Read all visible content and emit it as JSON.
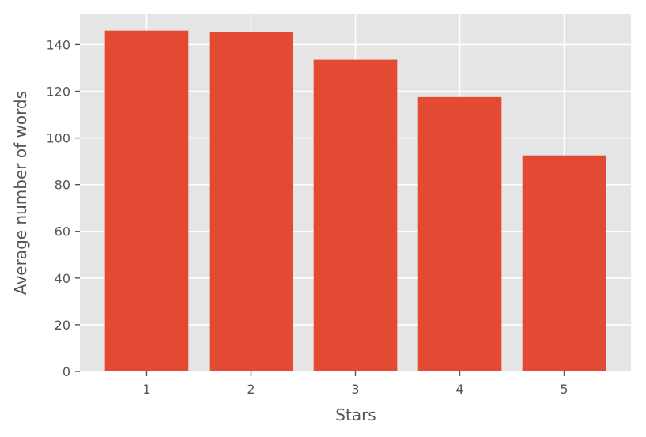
{
  "chart_data": {
    "type": "bar",
    "categories": [
      "1",
      "2",
      "3",
      "4",
      "5"
    ],
    "values": [
      146,
      145.5,
      133.5,
      117.5,
      92.5
    ],
    "xlabel": "Stars",
    "ylabel": "Average number of words",
    "ylim": [
      0,
      153
    ],
    "yticks": [
      0,
      20,
      40,
      60,
      80,
      100,
      120,
      140
    ],
    "grid": true,
    "bar_color": "#E24A33",
    "plot_background": "#E5E5E5",
    "grid_color": "#FFFFFF"
  }
}
